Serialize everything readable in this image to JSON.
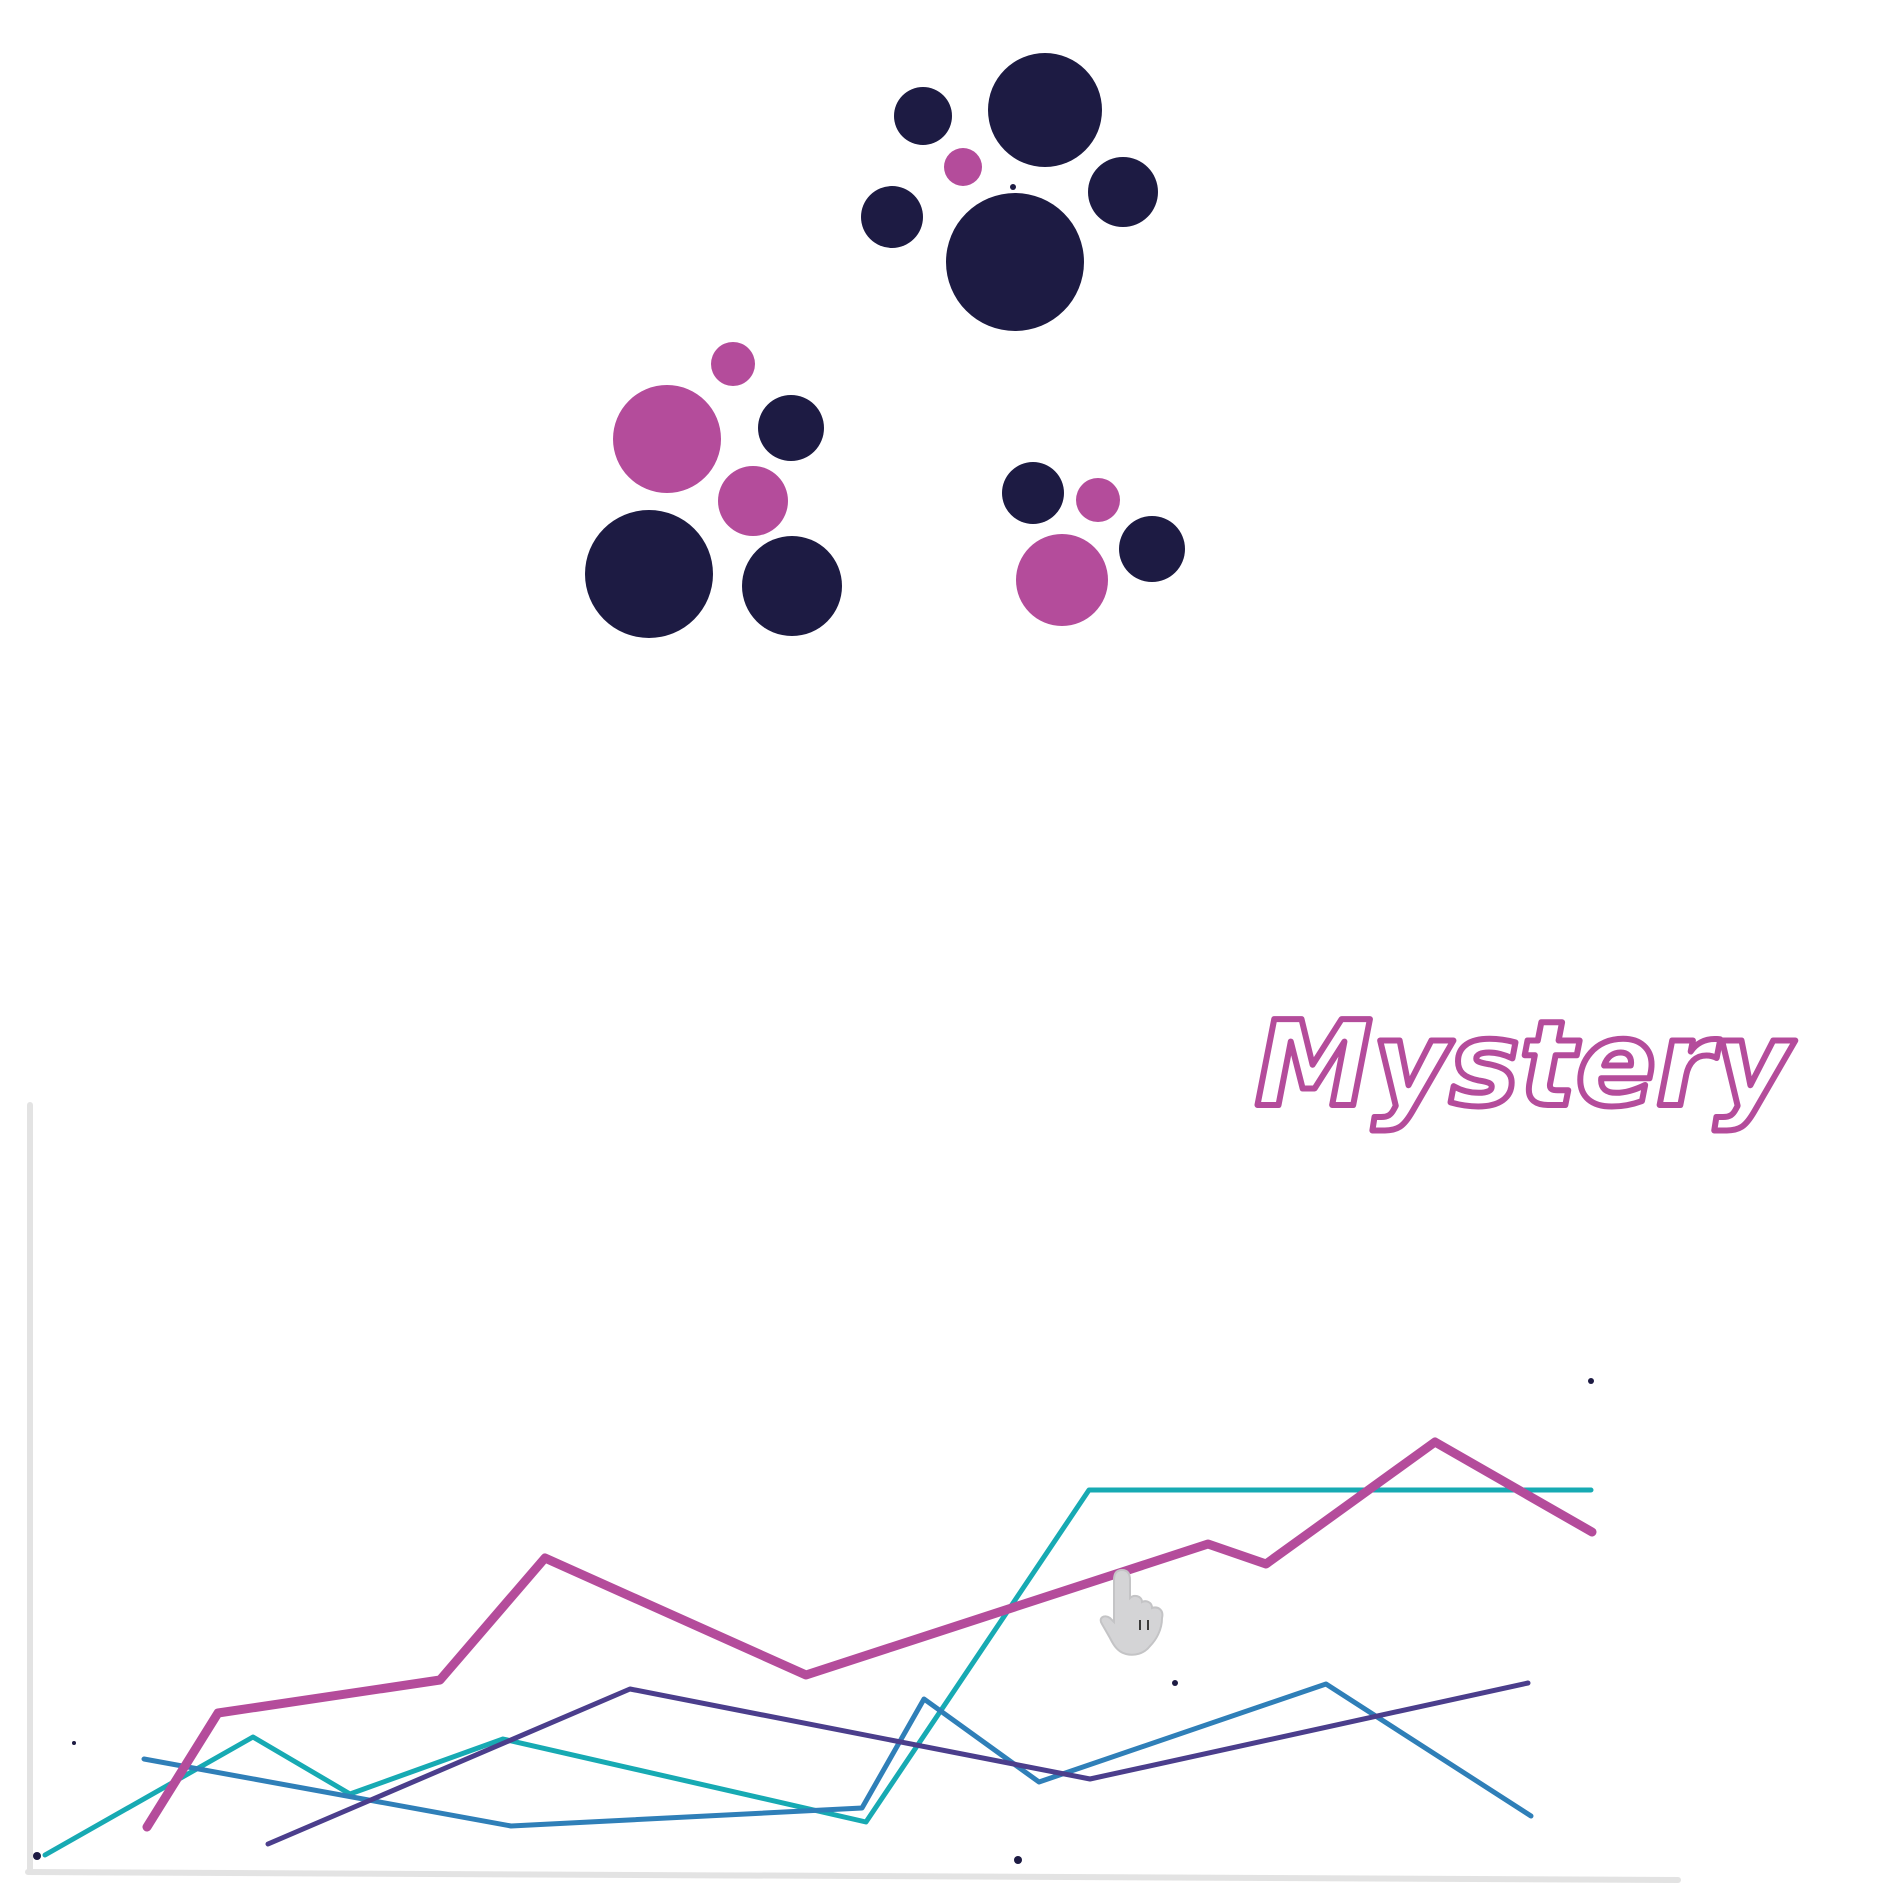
{
  "canvas": {
    "background": "#ffffff",
    "handwritten_title": "Mystery",
    "colors": {
      "navy": "#1d1b43",
      "magenta": "#b44c9b",
      "teal": "#17aab3",
      "blue": "#2f7fb8",
      "indigo": "#4b3e8c",
      "axis": "#e3e3e3",
      "cursor": "#d4d4d6"
    },
    "icons": [
      "hand-cursor-icon"
    ]
  }
}
